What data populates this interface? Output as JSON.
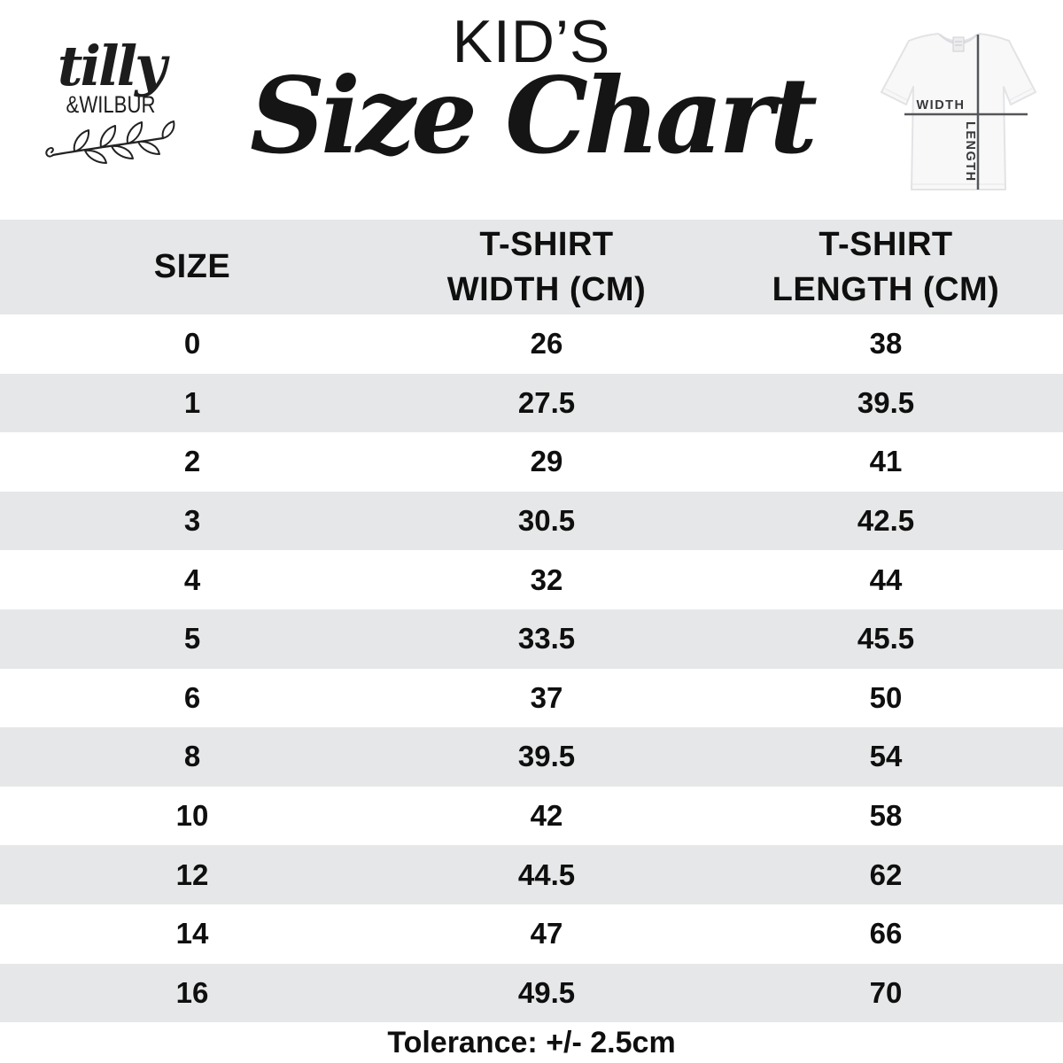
{
  "logo": {
    "script_name": "tilly",
    "caps_name": "&WILBUR"
  },
  "title": {
    "kicker": "KID’S",
    "main": "Size Chart"
  },
  "diagram": {
    "width_label": "WIDTH",
    "length_label": "LENGTH"
  },
  "table": {
    "headers": [
      {
        "line1": "SIZE",
        "line2": ""
      },
      {
        "line1": "T-SHIRT",
        "line2": "WIDTH (CM)"
      },
      {
        "line1": "T-SHIRT",
        "line2": "LENGTH (CM)"
      }
    ],
    "rows": [
      {
        "size": "0",
        "width": "26",
        "length": "38"
      },
      {
        "size": "1",
        "width": "27.5",
        "length": "39.5"
      },
      {
        "size": "2",
        "width": "29",
        "length": "41"
      },
      {
        "size": "3",
        "width": "30.5",
        "length": "42.5"
      },
      {
        "size": "4",
        "width": "32",
        "length": "44"
      },
      {
        "size": "5",
        "width": "33.5",
        "length": "45.5"
      },
      {
        "size": "6",
        "width": "37",
        "length": "50"
      },
      {
        "size": "8",
        "width": "39.5",
        "length": "54"
      },
      {
        "size": "10",
        "width": "42",
        "length": "58"
      },
      {
        "size": "12",
        "width": "44.5",
        "length": "62"
      },
      {
        "size": "14",
        "width": "47",
        "length": "66"
      },
      {
        "size": "16",
        "width": "49.5",
        "length": "70"
      }
    ]
  },
  "footer": {
    "tolerance": "Tolerance: +/- 2.5cm"
  },
  "colors": {
    "background": "#ffffff",
    "stripe": "#e6e7e8",
    "text": "#111111",
    "diagram_line": "#55565a"
  },
  "chart_data": {
    "type": "table",
    "title": "KID’S Size Chart",
    "columns": [
      "SIZE",
      "T-SHIRT WIDTH (CM)",
      "T-SHIRT LENGTH (CM)"
    ],
    "rows": [
      [
        0,
        26,
        38
      ],
      [
        1,
        27.5,
        39.5
      ],
      [
        2,
        29,
        41
      ],
      [
        3,
        30.5,
        42.5
      ],
      [
        4,
        32,
        44
      ],
      [
        5,
        33.5,
        45.5
      ],
      [
        6,
        37,
        50
      ],
      [
        8,
        39.5,
        54
      ],
      [
        10,
        42,
        58
      ],
      [
        12,
        44.5,
        62
      ],
      [
        14,
        47,
        66
      ],
      [
        16,
        49.5,
        70
      ]
    ],
    "note": "Tolerance: +/- 2.5cm",
    "layout": "header row shaded, alternating shaded data rows, 3 centered columns"
  }
}
